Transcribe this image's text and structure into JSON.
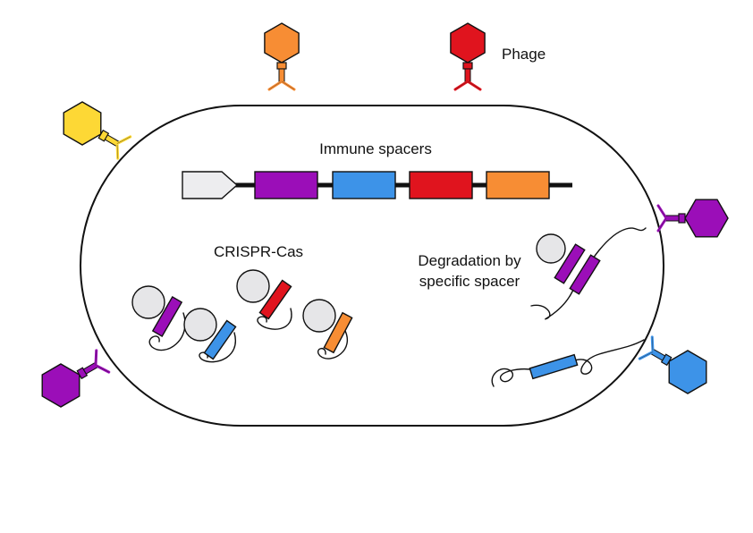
{
  "labels": {
    "phage": "Phage",
    "immune_spacers": "Immune spacers",
    "crispr_cas": "CRISPR-Cas",
    "degradation_line1": "Degradation by",
    "degradation_line2": "specific spacer"
  },
  "colors": {
    "purple": "#9B0EB8",
    "blue": "#3D93E8",
    "red": "#E0141E",
    "orange": "#F78D34",
    "yellow": "#FDD835",
    "leader": "#EDEDEF",
    "cas_protein": "#E6E6E8",
    "outline": "#111111"
  },
  "spacer_array": [
    "leader",
    "purple",
    "blue",
    "red",
    "orange"
  ],
  "crispr_cas_complexes": [
    "purple",
    "blue",
    "red",
    "orange"
  ],
  "phages": [
    "orange",
    "red",
    "yellow",
    "purple",
    "blue"
  ],
  "degraded_phage_dna": [
    "purple",
    "blue"
  ]
}
